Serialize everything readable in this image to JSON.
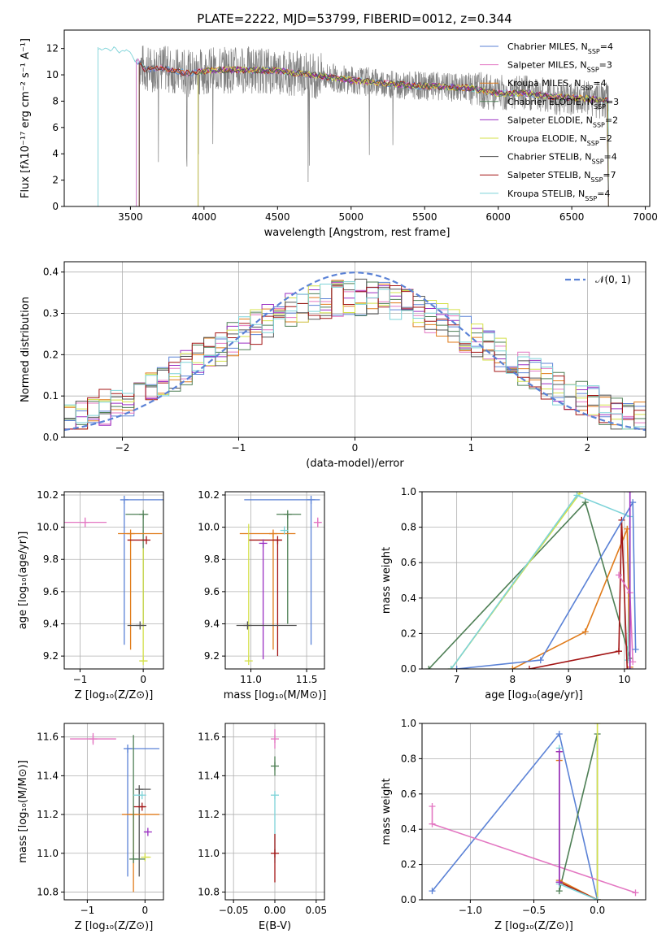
{
  "title": "PLATE=2222, MJD=53799, FIBERID=0012, z=0.344",
  "colors": {
    "Chabrier MILES": "#5b82d6",
    "Salpeter MILES": "#e377c2",
    "Kroupa MILES": "#e07b1a",
    "Chabrier ELODIE": "#4e7f55",
    "Salpeter ELODIE": "#9a2fc2",
    "Kroupa ELODIE": "#d4e04a",
    "Chabrier STELIB": "#555555",
    "Salpeter STELIB": "#a31515",
    "Kroupa STELIB": "#7dd3d8",
    "normal": "#5b82d6",
    "data": "#808080"
  },
  "chart_data": [
    {
      "id": "spectrum",
      "type": "line",
      "xlabel": "wavelength [Angstrom, rest frame]",
      "ylabel": "Flux [fλ10⁻¹⁷ erg cm⁻² s⁻¹ A⁻¹]",
      "xlim": [
        3050,
        7030
      ],
      "ylim": [
        0,
        13.4
      ],
      "xticks": [
        3500,
        4000,
        4500,
        5000,
        5500,
        6000,
        6500,
        7000
      ],
      "yticks": [
        0,
        2,
        4,
        6,
        8,
        10,
        12
      ],
      "legend_loc": "upper right",
      "legend": [
        {
          "model": "Chabrier MILES",
          "nssp": "4"
        },
        {
          "model": "Salpeter MILES",
          "nssp": "3"
        },
        {
          "model": "Kroupa MILES",
          "nssp": "4"
        },
        {
          "model": "Chabrier ELODIE",
          "nssp": "3"
        },
        {
          "model": "Salpeter ELODIE",
          "nssp": "2"
        },
        {
          "model": "Kroupa ELODIE",
          "nssp": "2"
        },
        {
          "model": "Chabrier STELIB",
          "nssp": "4"
        },
        {
          "model": "Salpeter STELIB",
          "nssp": "7"
        },
        {
          "model": "Kroupa STELIB",
          "nssp": "4"
        }
      ],
      "continuum": [
        [
          3280,
          12.1
        ],
        [
          3400,
          12.0
        ],
        [
          3500,
          11.6
        ],
        [
          3600,
          10.4
        ],
        [
          3700,
          10.5
        ],
        [
          3800,
          10.3
        ],
        [
          3900,
          10.1
        ],
        [
          4000,
          10.3
        ],
        [
          4200,
          10.4
        ],
        [
          4500,
          10.3
        ],
        [
          4800,
          9.9
        ],
        [
          5000,
          9.6
        ],
        [
          5200,
          9.4
        ],
        [
          5400,
          9.2
        ],
        [
          5600,
          9.1
        ],
        [
          5800,
          9.0
        ],
        [
          6000,
          8.6
        ],
        [
          6200,
          8.6
        ],
        [
          6400,
          8.3
        ],
        [
          6600,
          8.2
        ],
        [
          6750,
          8.0
        ]
      ],
      "model_starts": [
        {
          "model": "Kroupa STELIB",
          "start": 3280
        },
        {
          "model": "Chabrier MILES",
          "start": 3540
        },
        {
          "model": "Salpeter MILES",
          "start": 3540
        },
        {
          "model": "Kroupa MILES",
          "start": 3560
        },
        {
          "model": "Salpeter STELIB",
          "start": 3560
        },
        {
          "model": "Chabrier ELODIE",
          "start": 3960
        },
        {
          "model": "Salpeter ELODIE",
          "start": 3960
        },
        {
          "model": "Kroupa ELODIE",
          "start": 3960
        },
        {
          "model": "Chabrier STELIB",
          "start": 3560
        }
      ],
      "data_range": [
        3560,
        6750
      ]
    },
    {
      "id": "residuals",
      "type": "histogram",
      "xlabel": "(data-model)/error",
      "ylabel": "Normed distribution",
      "xlim": [
        -2.5,
        2.5
      ],
      "ylim": [
        0,
        0.425
      ],
      "xticks": [
        -2,
        -1,
        0,
        1,
        2
      ],
      "yticks": [
        0.0,
        0.1,
        0.2,
        0.3,
        0.4
      ],
      "legend_label": "𝒩(0, 1)",
      "legend_loc": "upper right",
      "bin_width": 0.1,
      "bin_start": -2.5
    },
    {
      "id": "age-vs-Z",
      "type": "errorbar",
      "xlabel": "Z [log₁₀(Z/Z⊙)]",
      "ylabel": "age  [log₁₀(age/yr)]",
      "xlim": [
        -1.25,
        0.32
      ],
      "ylim": [
        9.12,
        10.22
      ],
      "xticks": [
        -1,
        0
      ],
      "yticks": [
        9.2,
        9.4,
        9.6,
        9.8,
        10.0,
        10.2
      ],
      "points": [
        {
          "model": "Chabrier MILES",
          "x": -0.3,
          "y": 10.17,
          "xerr": [
            0.0,
            0.62
          ],
          "yerr": [
            0.9,
            0.0
          ]
        },
        {
          "model": "Chabrier ELODIE",
          "x": 0.0,
          "y": 10.08,
          "xerr": [
            0.28,
            0.08
          ],
          "yerr": [
            0.68,
            0.0
          ]
        },
        {
          "model": "Salpeter MILES",
          "x": -0.92,
          "y": 10.03,
          "xerr": [
            0.34,
            0.34
          ],
          "yerr": [
            0.03,
            0.03
          ]
        },
        {
          "model": "Kroupa MILES",
          "x": -0.2,
          "y": 9.96,
          "xerr": [
            0.2,
            0.5
          ],
          "yerr": [
            0.72,
            0.0
          ]
        },
        {
          "model": "Salpeter STELIB",
          "x": 0.05,
          "y": 9.92,
          "xerr": [
            0.3,
            0.0
          ],
          "yerr": [
            0.0,
            0.0
          ]
        },
        {
          "model": "Kroupa ELODIE",
          "x": 0.0,
          "y": 9.17,
          "xerr": [
            0.05,
            0.07
          ],
          "yerr": [
            0.0,
            0.7
          ]
        },
        {
          "model": "Chabrier STELIB",
          "x": -0.05,
          "y": 9.39,
          "xerr": [
            0.2,
            0.1
          ],
          "yerr": [
            0.0,
            0.0
          ]
        }
      ]
    },
    {
      "id": "age-vs-mass",
      "type": "errorbar",
      "xlabel": "mass [log₁₀(M/M⊙)]",
      "ylabel": "",
      "xlim": [
        10.77,
        11.66
      ],
      "ylim": [
        9.12,
        10.22
      ],
      "xticks": [
        11.0,
        11.5
      ],
      "yticks": [
        9.2,
        9.4,
        9.6,
        9.8,
        10.0,
        10.2
      ],
      "points": [
        {
          "model": "Chabrier MILES",
          "x": 11.54,
          "y": 10.17,
          "xerr": [
            0.6,
            0.08
          ],
          "yerr": [
            0.9,
            0.0
          ]
        },
        {
          "model": "Chabrier ELODIE",
          "x": 11.33,
          "y": 10.08,
          "xerr": [
            0.1,
            0.12
          ],
          "yerr": [
            0.68,
            0.0
          ]
        },
        {
          "model": "Salpeter MILES",
          "x": 11.6,
          "y": 10.03,
          "xerr": [
            0.03,
            0.03
          ],
          "yerr": [
            0.03,
            0.03
          ]
        },
        {
          "model": "Kroupa MILES",
          "x": 11.2,
          "y": 9.96,
          "xerr": [
            0.3,
            0.2
          ],
          "yerr": [
            0.72,
            0.0
          ]
        },
        {
          "model": "Salpeter STELIB",
          "x": 11.24,
          "y": 9.92,
          "xerr": [
            0.26,
            0.04
          ],
          "yerr": [
            0.72,
            0.0
          ]
        },
        {
          "model": "Kroupa ELODIE",
          "x": 10.98,
          "y": 9.17,
          "xerr": [
            0.0,
            0.0
          ],
          "yerr": [
            0.0,
            0.85
          ]
        },
        {
          "model": "Salpeter ELODIE",
          "x": 11.11,
          "y": 9.9,
          "xerr": [
            0.0,
            0.0
          ],
          "yerr": [
            0.72,
            0.0
          ]
        },
        {
          "model": "Chabrier STELIB",
          "x": 10.97,
          "y": 9.39,
          "xerr": [
            0.1,
            0.44
          ],
          "yerr": [
            0.0,
            0.0
          ]
        },
        {
          "model": "Kroupa STELIB",
          "x": 11.3,
          "y": 9.98,
          "xerr": [
            0.0,
            0.0
          ],
          "yerr": [
            0.0,
            0.0
          ]
        }
      ]
    },
    {
      "id": "weight-vs-age",
      "type": "line",
      "xlabel": "age  [log₁₀(age/yr)]",
      "ylabel": "mass weight",
      "xlim": [
        6.38,
        10.38
      ],
      "ylim": [
        0,
        1.0
      ],
      "xticks": [
        7,
        8,
        9,
        10
      ],
      "yticks": [
        0.0,
        0.2,
        0.4,
        0.6,
        0.8,
        1.0
      ],
      "series": [
        {
          "model": "Chabrier ELODIE",
          "x": [
            6.5,
            9.3,
            10.1
          ],
          "y": [
            0.0,
            0.94,
            0.06
          ]
        },
        {
          "model": "Kroupa ELODIE",
          "x": [
            6.9,
            9.2
          ],
          "y": [
            0.0,
            0.99
          ]
        },
        {
          "model": "Kroupa STELIB",
          "x": [
            6.9,
            9.15,
            10.1,
            10.06
          ],
          "y": [
            0.0,
            0.98,
            0.86,
            0.05
          ]
        },
        {
          "model": "Kroupa MILES",
          "x": [
            8.0,
            9.3,
            10.05,
            10.1
          ],
          "y": [
            0.0,
            0.21,
            0.79,
            0.01
          ]
        },
        {
          "model": "Salpeter STELIB",
          "x": [
            8.3,
            9.9,
            9.95,
            10.05
          ],
          "y": [
            0.0,
            0.1,
            0.84,
            0.0
          ]
        },
        {
          "model": "Salpeter MILES",
          "x": [
            9.9,
            10.1,
            10.15
          ],
          "y": [
            0.53,
            0.43,
            0.04
          ]
        },
        {
          "model": "Chabrier MILES",
          "x": [
            7.0,
            8.5,
            10.15,
            10.2
          ],
          "y": [
            0.0,
            0.05,
            0.94,
            0.11
          ]
        },
        {
          "model": "Salpeter ELODIE",
          "x": [
            10.1,
            10.1
          ],
          "y": [
            0.0,
            1.0
          ]
        }
      ]
    },
    {
      "id": "mass-vs-Z",
      "type": "errorbar",
      "xlabel": "Z [log₁₀(Z/Z⊙)]",
      "ylabel": "mass [log₁₀(M/M⊙)]",
      "xlim": [
        -1.4,
        0.32
      ],
      "ylim": [
        10.76,
        11.67
      ],
      "xticks": [
        -1,
        0
      ],
      "yticks": [
        10.8,
        11.0,
        11.2,
        11.4,
        11.6
      ],
      "points": [
        {
          "model": "Salpeter MILES",
          "x": -0.9,
          "y": 11.59,
          "xerr": [
            0.4,
            0.4
          ],
          "yerr": [
            0.03,
            0.03
          ]
        },
        {
          "model": "Chabrier MILES",
          "x": -0.3,
          "y": 11.54,
          "xerr": [
            0.0,
            0.55
          ],
          "yerr": [
            0.66,
            0.0
          ]
        },
        {
          "model": "Chabrier STELIB",
          "x": -0.1,
          "y": 11.33,
          "xerr": [
            0.0,
            0.2
          ],
          "yerr": [
            0.45,
            0.0
          ]
        },
        {
          "model": "Salpeter STELIB",
          "x": -0.05,
          "y": 11.24,
          "xerr": [
            0.15,
            0.05
          ],
          "yerr": [
            0.0,
            0.0
          ]
        },
        {
          "model": "Kroupa MILES",
          "x": -0.2,
          "y": 11.2,
          "xerr": [
            0.2,
            0.45
          ],
          "yerr": [
            0.4,
            0.0
          ]
        },
        {
          "model": "Salpeter ELODIE",
          "x": 0.05,
          "y": 11.11,
          "xerr": [
            0.05,
            0.0
          ],
          "yerr": [
            0.0,
            0.0
          ]
        },
        {
          "model": "Kroupa ELODIE",
          "x": 0.0,
          "y": 10.98,
          "xerr": [
            0.0,
            0.1
          ],
          "yerr": [
            0.0,
            0.0
          ]
        },
        {
          "model": "Chabrier ELODIE",
          "x": -0.2,
          "y": 10.97,
          "xerr": [
            0.0,
            0.2
          ],
          "yerr": [
            0.0,
            0.64
          ]
        },
        {
          "model": "Kroupa STELIB",
          "x": -0.05,
          "y": 11.3,
          "xerr": [
            0.15,
            0.0
          ],
          "yerr": [
            0.0,
            0.0
          ]
        }
      ]
    },
    {
      "id": "mass-vs-ebv",
      "type": "errorbar",
      "xlabel": "E(B-V)",
      "ylabel": "",
      "xlim": [
        -0.06,
        0.06
      ],
      "ylim": [
        10.76,
        11.67
      ],
      "xticks": [
        -0.05,
        0.0,
        0.05
      ],
      "xticklabels": [
        "−0.05",
        "0.00",
        "0.05"
      ],
      "yticks": [
        10.8,
        11.0,
        11.2,
        11.4,
        11.6
      ],
      "points": [
        {
          "model": "Salpeter MILES",
          "x": 0.0,
          "y": 11.59,
          "xerr": [
            0,
            0
          ],
          "yerr": [
            0.05,
            0.05
          ]
        },
        {
          "model": "Chabrier ELODIE",
          "x": 0.0,
          "y": 11.45,
          "xerr": [
            0,
            0
          ],
          "yerr": [
            0.05,
            0.05
          ]
        },
        {
          "model": "Kroupa STELIB",
          "x": 0.0,
          "y": 11.3,
          "xerr": [
            0,
            0
          ],
          "yerr": [
            0.35,
            0.0
          ]
        },
        {
          "model": "Salpeter STELIB",
          "x": 0.0,
          "y": 11.0,
          "xerr": [
            0,
            0
          ],
          "yerr": [
            0.15,
            0.1
          ]
        }
      ]
    },
    {
      "id": "weight-vs-Z",
      "type": "line",
      "xlabel": "Z [log₁₀(Z/Z⊙)]",
      "ylabel": "mass weight",
      "xlim": [
        -1.38,
        0.38
      ],
      "ylim": [
        0,
        1.0
      ],
      "xticks": [
        -1.0,
        -0.5,
        0.0
      ],
      "xticklabels": [
        "−1.0",
        "−0.5",
        "0.0"
      ],
      "yticks": [
        0.0,
        0.2,
        0.4,
        0.6,
        0.8,
        1.0
      ],
      "series": [
        {
          "model": "Chabrier MILES",
          "x": [
            -1.3,
            -0.3,
            0.0
          ],
          "y": [
            0.05,
            0.94,
            0.0
          ]
        },
        {
          "model": "Salpeter MILES",
          "x": [
            -1.3,
            -1.3,
            0.3
          ],
          "y": [
            0.53,
            0.43,
            0.04
          ]
        },
        {
          "model": "Chabrier ELODIE",
          "x": [
            -0.3,
            0.0,
            0.0
          ],
          "y": [
            0.05,
            0.94,
            0.0
          ]
        },
        {
          "model": "Kroupa ELODIE",
          "x": [
            0.0,
            0.0
          ],
          "y": [
            0.0,
            1.0
          ]
        },
        {
          "model": "Kroupa MILES",
          "x": [
            -0.3,
            -0.3,
            0.0
          ],
          "y": [
            0.79,
            0.11,
            0.0
          ]
        },
        {
          "model": "Salpeter STELIB",
          "x": [
            -0.3,
            -0.3,
            0.0
          ],
          "y": [
            0.84,
            0.1,
            0.0
          ]
        },
        {
          "model": "Kroupa STELIB",
          "x": [
            -0.3,
            -0.3,
            0.0
          ],
          "y": [
            0.86,
            0.09,
            0.0
          ]
        },
        {
          "model": "Salpeter ELODIE",
          "x": [
            -0.3,
            -0.3
          ],
          "y": [
            0.84,
            0.1
          ]
        }
      ]
    }
  ]
}
